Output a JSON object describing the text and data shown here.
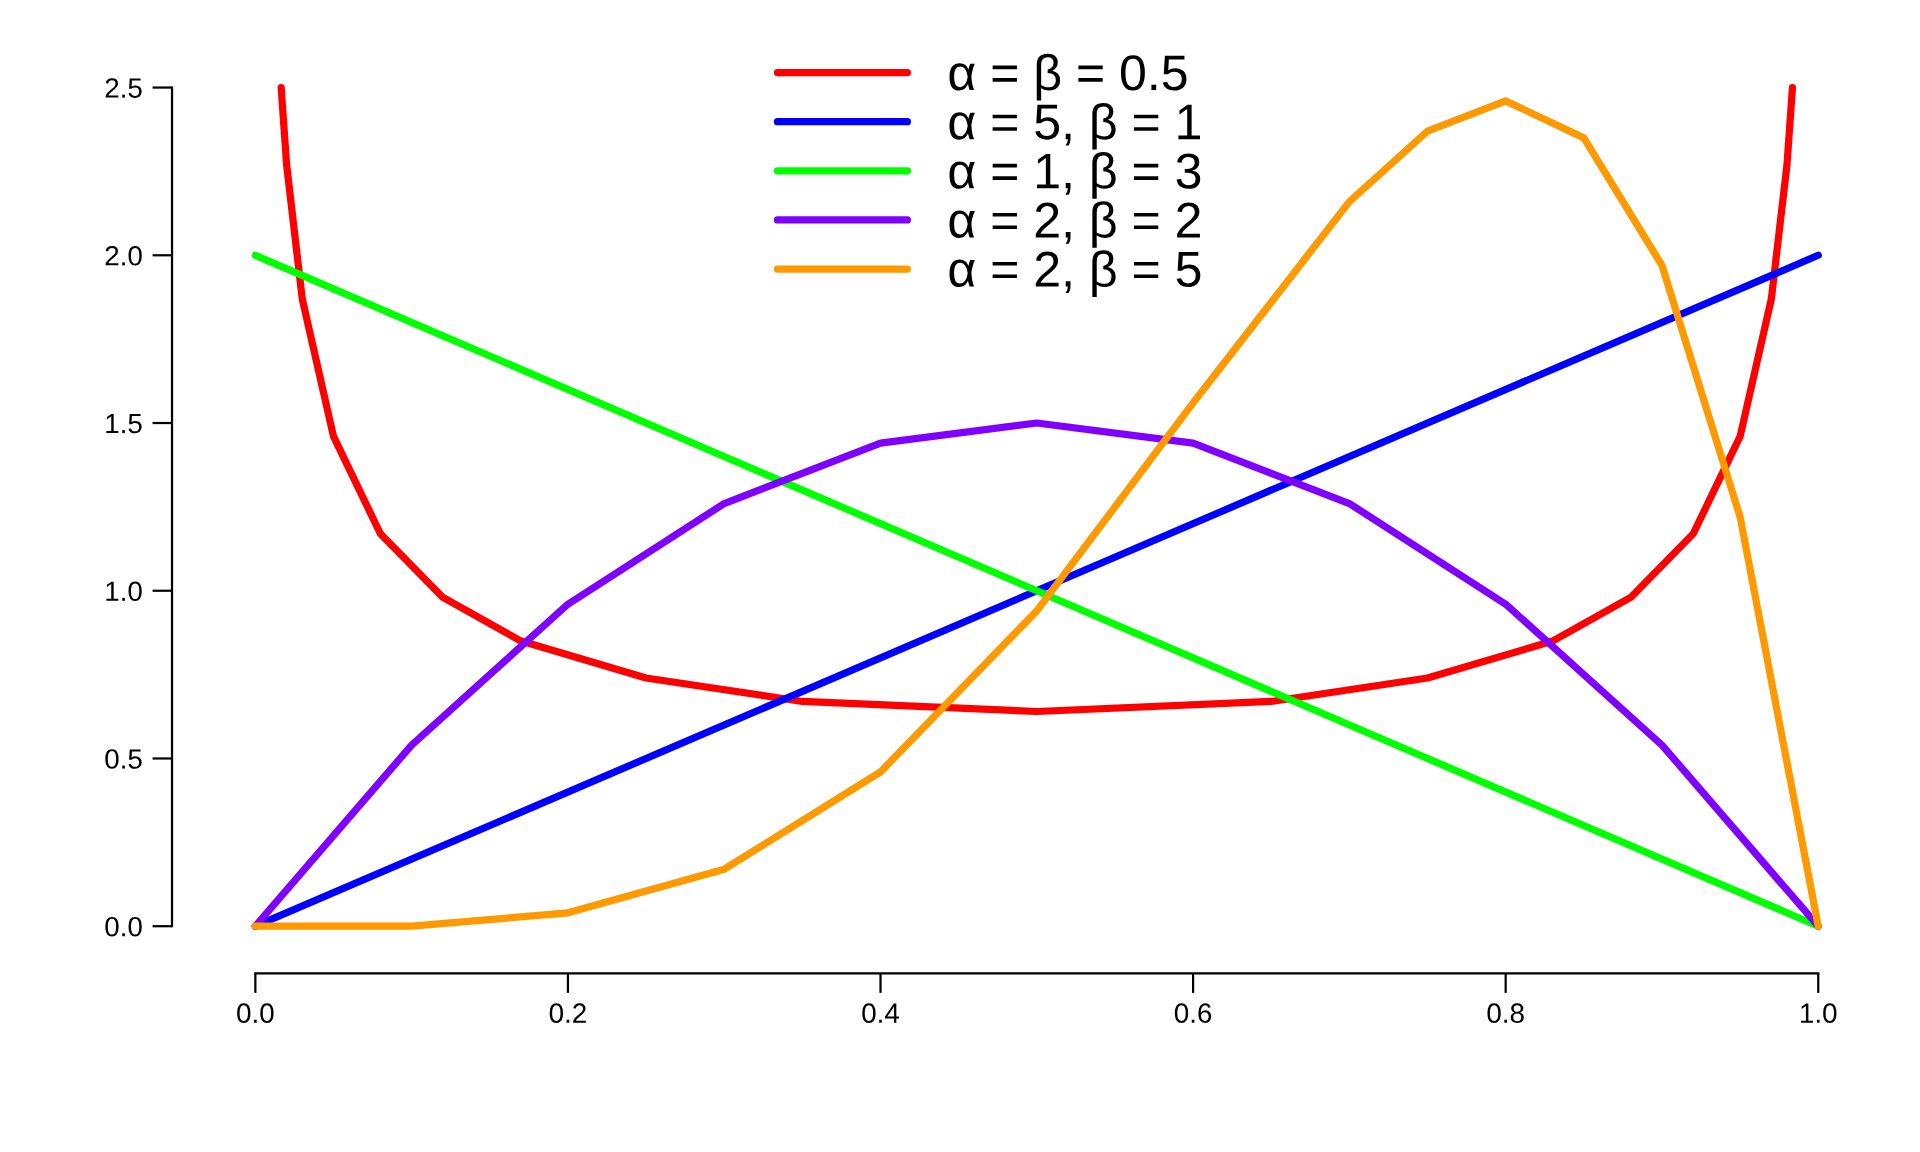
{
  "chart_data": {
    "type": "line",
    "xlim": [
      0,
      1
    ],
    "ylim": [
      0,
      2.5
    ],
    "xticks": [
      {
        "value": 0,
        "label": "0.0"
      },
      {
        "value": 0.2,
        "label": "0.2"
      },
      {
        "value": 0.4,
        "label": "0.4"
      },
      {
        "value": 0.6,
        "label": "0.6"
      },
      {
        "value": 0.8,
        "label": "0.8"
      },
      {
        "value": 1,
        "label": "1.0"
      }
    ],
    "yticks": [
      {
        "value": 0,
        "label": "0.0"
      },
      {
        "value": 0.5,
        "label": "0.5"
      },
      {
        "value": 1,
        "label": "1.0"
      },
      {
        "value": 1.5,
        "label": "1.5"
      },
      {
        "value": 2,
        "label": "2.0"
      },
      {
        "value": 2.5,
        "label": "2.5"
      }
    ],
    "grid": false,
    "legend": "top",
    "marker": "none",
    "line_style": "solid",
    "series": [
      {
        "name": "α = β = 0.5",
        "color": "#ff0000",
        "x": [
          0.0165,
          0.02,
          0.03,
          0.05,
          0.08,
          0.12,
          0.17,
          0.25,
          0.35,
          0.5,
          0.65,
          0.75,
          0.83,
          0.88,
          0.92,
          0.95,
          0.97,
          0.98,
          0.9835
        ],
        "values": [
          2.5,
          2.27,
          1.87,
          1.46,
          1.17,
          0.98,
          0.85,
          0.74,
          0.67,
          0.64,
          0.67,
          0.74,
          0.85,
          0.98,
          1.17,
          1.46,
          1.87,
          2.27,
          2.5
        ]
      },
      {
        "name": "α = 5, β = 1",
        "color": "#0000ff",
        "x": [
          0,
          1
        ],
        "values": [
          0,
          2
        ]
      },
      {
        "name": "α = 1, β = 3",
        "color": "#00ff00",
        "x": [
          0,
          1
        ],
        "values": [
          2,
          0
        ]
      },
      {
        "name": "α = 2, β = 2",
        "color": "#8000ff",
        "x": [
          0,
          0.1,
          0.2,
          0.3,
          0.4,
          0.5,
          0.6,
          0.7,
          0.8,
          0.9,
          1
        ],
        "values": [
          0,
          0.54,
          0.96,
          1.26,
          1.44,
          1.5,
          1.44,
          1.26,
          0.96,
          0.54,
          0
        ]
      },
      {
        "name": "α = 2, β = 5",
        "color": "#ff9900",
        "x": [
          0,
          0.1,
          0.2,
          0.3,
          0.4,
          0.5,
          0.6,
          0.7,
          0.75,
          0.8,
          0.85,
          0.9,
          0.95,
          1
        ],
        "values": [
          0,
          0.0,
          0.04,
          0.17,
          0.46,
          0.94,
          1.56,
          2.16,
          2.37,
          2.46,
          2.35,
          1.97,
          1.22,
          0
        ]
      }
    ]
  }
}
